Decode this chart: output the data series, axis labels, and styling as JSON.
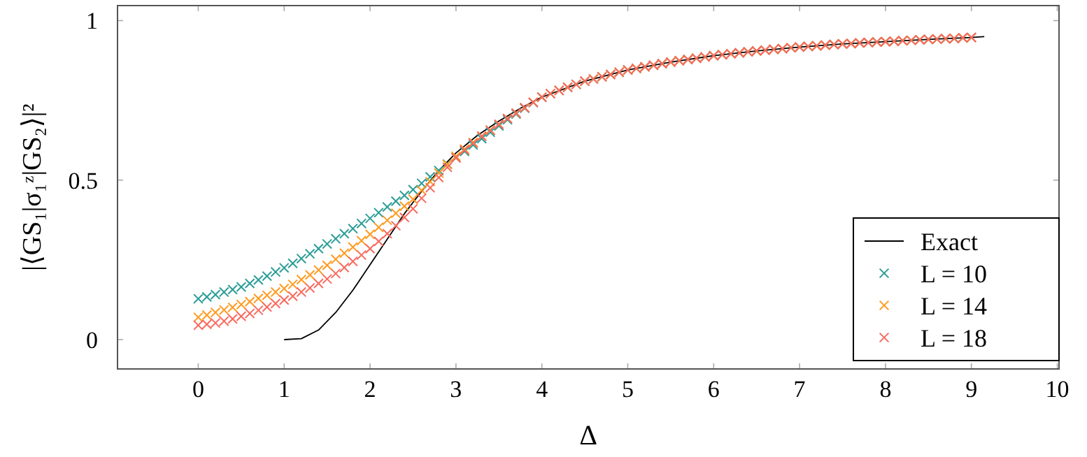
{
  "chart_data": {
    "type": "line",
    "xlabel": "Δ",
    "ylabel": "|⟨GS₁|σ₁ᶻ|GS₂⟩|²",
    "xlim": [
      -0.94,
      10.02
    ],
    "ylim": [
      -0.092,
      1.047
    ],
    "xticks": [
      0,
      1,
      2,
      3,
      4,
      5,
      6,
      7,
      8,
      9,
      10
    ],
    "yticks": [
      0,
      0.5,
      1
    ],
    "grid": false,
    "legend": "bottom right",
    "line_style": "solid",
    "x": [
      0,
      0.1,
      0.2,
      0.3,
      0.4,
      0.5,
      0.6,
      0.7,
      0.8,
      0.9,
      1,
      1.1,
      1.2,
      1.3,
      1.4,
      1.5,
      1.6,
      1.7,
      1.8,
      1.9,
      2,
      2.1,
      2.2,
      2.3,
      2.4,
      2.5,
      2.6,
      2.7,
      2.8,
      2.9,
      3,
      3.1,
      3.2,
      3.3,
      3.4,
      3.5,
      3.6,
      3.7,
      3.8,
      3.9,
      4,
      4.1,
      4.2,
      4.3,
      4.4,
      4.5,
      4.6,
      4.7,
      4.8,
      4.9,
      5,
      5.1,
      5.2,
      5.3,
      5.4,
      5.5,
      5.6,
      5.7,
      5.8,
      5.9,
      6,
      6.1,
      6.2,
      6.3,
      6.4,
      6.5,
      6.6,
      6.7,
      6.8,
      6.9,
      7,
      7.1,
      7.2,
      7.3,
      7.4,
      7.5,
      7.6,
      7.7,
      7.8,
      7.9,
      8,
      8.1,
      8.2,
      8.3,
      8.4,
      8.5,
      8.6,
      8.7,
      8.8,
      8.9,
      9
    ],
    "series": [
      {
        "name": "Exact",
        "color": "#000000",
        "x": [
          1,
          1.2,
          1.4,
          1.6,
          1.8,
          2,
          2.2,
          2.4,
          2.6,
          2.8,
          3,
          3.25,
          3.5,
          3.75,
          4,
          4.5,
          5,
          5.5,
          6,
          6.5,
          7,
          7.5,
          8,
          8.5,
          9,
          9.15
        ],
        "values": [
          0,
          0.003,
          0.03,
          0.085,
          0.155,
          0.235,
          0.315,
          0.395,
          0.465,
          0.53,
          0.585,
          0.64,
          0.685,
          0.725,
          0.76,
          0.81,
          0.845,
          0.87,
          0.89,
          0.905,
          0.917,
          0.927,
          0.934,
          0.941,
          0.947,
          0.95
        ]
      },
      {
        "name": "L = 10",
        "type": "scatter",
        "marker": "cross",
        "color": "#2a9d96",
        "values": [
          0.128,
          0.134,
          0.141,
          0.149,
          0.157,
          0.165,
          0.176,
          0.187,
          0.199,
          0.212,
          0.225,
          0.239,
          0.254,
          0.269,
          0.285,
          0.3,
          0.316,
          0.332,
          0.348,
          0.364,
          0.38,
          0.398,
          0.416,
          0.434,
          0.452,
          0.47,
          0.49,
          0.51,
          0.53,
          0.55,
          0.57,
          0.59,
          0.61,
          0.63,
          0.65,
          0.67,
          0.689,
          0.707,
          0.725,
          0.743,
          0.76,
          0.771,
          0.781,
          0.791,
          0.8,
          0.81,
          0.817,
          0.824,
          0.831,
          0.838,
          0.845,
          0.85,
          0.855,
          0.86,
          0.865,
          0.87,
          0.874,
          0.878,
          0.882,
          0.886,
          0.89,
          0.893,
          0.896,
          0.899,
          0.902,
          0.905,
          0.907,
          0.91,
          0.912,
          0.915,
          0.917,
          0.919,
          0.921,
          0.923,
          0.925,
          0.927,
          0.928,
          0.93,
          0.931,
          0.933,
          0.934,
          0.935,
          0.937,
          0.938,
          0.94,
          0.941,
          0.942,
          0.943,
          0.944,
          0.946,
          0.947
        ]
      },
      {
        "name": "L = 14",
        "type": "scatter",
        "marker": "cross",
        "color": "#ff9a1f",
        "values": [
          0.07,
          0.077,
          0.085,
          0.093,
          0.101,
          0.11,
          0.119,
          0.129,
          0.139,
          0.149,
          0.16,
          0.173,
          0.188,
          0.203,
          0.218,
          0.233,
          0.252,
          0.271,
          0.29,
          0.31,
          0.33,
          0.352,
          0.374,
          0.396,
          0.418,
          0.44,
          0.468,
          0.495,
          0.522,
          0.549,
          0.575,
          0.597,
          0.618,
          0.638,
          0.657,
          0.675,
          0.693,
          0.71,
          0.727,
          0.744,
          0.76,
          0.771,
          0.781,
          0.791,
          0.8,
          0.81,
          0.817,
          0.824,
          0.831,
          0.838,
          0.845,
          0.85,
          0.855,
          0.86,
          0.865,
          0.87,
          0.874,
          0.878,
          0.882,
          0.886,
          0.89,
          0.893,
          0.896,
          0.899,
          0.902,
          0.905,
          0.907,
          0.91,
          0.912,
          0.915,
          0.917,
          0.919,
          0.921,
          0.923,
          0.925,
          0.927,
          0.928,
          0.93,
          0.931,
          0.933,
          0.934,
          0.935,
          0.937,
          0.938,
          0.94,
          0.941,
          0.942,
          0.943,
          0.944,
          0.946,
          0.947
        ]
      },
      {
        "name": "L = 18",
        "type": "scatter",
        "marker": "cross",
        "color": "#f86a5e",
        "values": [
          0.045,
          0.048,
          0.052,
          0.058,
          0.065,
          0.073,
          0.082,
          0.092,
          0.102,
          0.113,
          0.124,
          0.136,
          0.149,
          0.162,
          0.176,
          0.19,
          0.207,
          0.226,
          0.245,
          0.265,
          0.285,
          0.308,
          0.332,
          0.357,
          0.383,
          0.41,
          0.443,
          0.476,
          0.508,
          0.54,
          0.57,
          0.594,
          0.616,
          0.637,
          0.656,
          0.675,
          0.693,
          0.71,
          0.727,
          0.744,
          0.76,
          0.771,
          0.781,
          0.791,
          0.8,
          0.81,
          0.817,
          0.824,
          0.831,
          0.838,
          0.845,
          0.85,
          0.855,
          0.86,
          0.865,
          0.87,
          0.874,
          0.878,
          0.882,
          0.886,
          0.89,
          0.893,
          0.896,
          0.899,
          0.902,
          0.905,
          0.907,
          0.91,
          0.912,
          0.915,
          0.917,
          0.919,
          0.921,
          0.923,
          0.925,
          0.927,
          0.928,
          0.93,
          0.931,
          0.933,
          0.934,
          0.935,
          0.937,
          0.938,
          0.94,
          0.941,
          0.942,
          0.943,
          0.944,
          0.946,
          0.947
        ]
      }
    ]
  }
}
